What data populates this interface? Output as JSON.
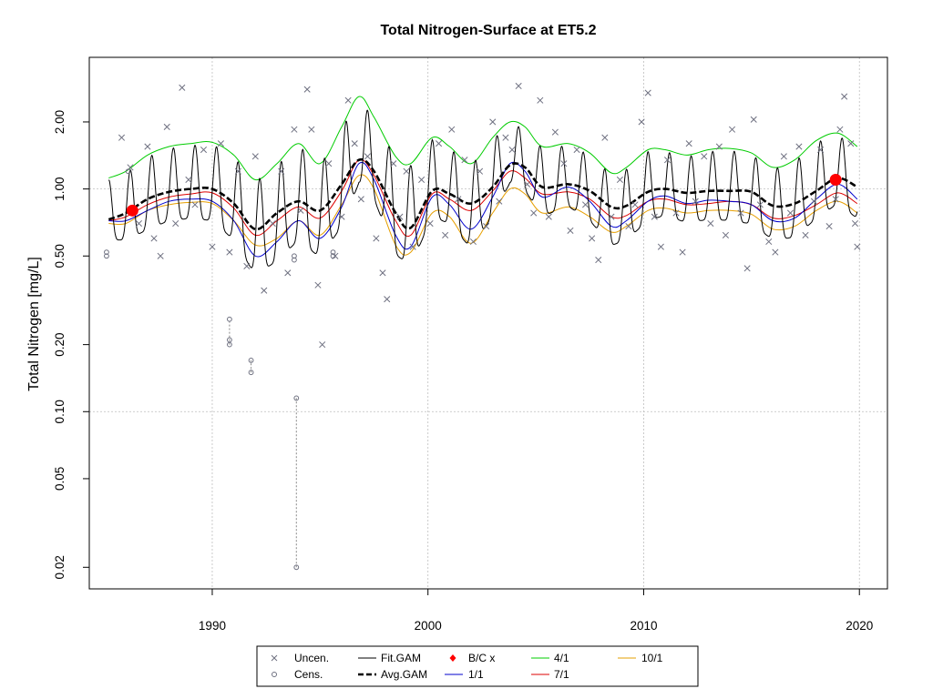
{
  "chart_data": {
    "type": "scatter",
    "title": "Total Nitrogen-Surface at ET5.2",
    "xlabel": "",
    "ylabel": "Total Nitrogen [mg/L]",
    "ylog": true,
    "xlim": [
      1984.3,
      2021.3
    ],
    "ylim": [
      0.016,
      3.9
    ],
    "x_ticks": [
      1990,
      2000,
      2010,
      2020
    ],
    "y_ticks": [
      0.02,
      0.05,
      0.1,
      0.2,
      0.5,
      1.0,
      2.0
    ],
    "y_tick_labels": [
      "0.02",
      "0.05",
      "0.10",
      "0.20",
      "0.50",
      "1.00",
      "2.00"
    ],
    "grid": true,
    "legend_position": "bottom",
    "legend": {
      "col1": [
        "Uncen.",
        "Cens."
      ],
      "col2": [
        "Fit.GAM",
        "Avg.GAM"
      ],
      "col3": [
        "B/C x",
        "1/1"
      ],
      "col4": [
        "4/1",
        "7/1"
      ],
      "col5": [
        "10/1"
      ]
    },
    "colors": {
      "uncensored": "#6e7080",
      "censored": "#6e7080",
      "fit_gam": "#000000",
      "avg_gam": "#000000",
      "bc": "#ff0000",
      "s1_1": "#0000cd",
      "s4_1": "#00cc00",
      "s7_1": "#dd0000",
      "s10_1": "#e69f00",
      "grid": "#bebebe"
    },
    "avg_gam": [
      [
        1985.2,
        0.73
      ],
      [
        1986.0,
        0.78
      ],
      [
        1987.0,
        0.9
      ],
      [
        1988.0,
        0.97
      ],
      [
        1989.0,
        1.0
      ],
      [
        1990.0,
        1.0
      ],
      [
        1991.0,
        0.86
      ],
      [
        1992.0,
        0.66
      ],
      [
        1993.0,
        0.78
      ],
      [
        1994.0,
        0.88
      ],
      [
        1995.0,
        0.8
      ],
      [
        1996.0,
        1.05
      ],
      [
        1996.8,
        1.35
      ],
      [
        1997.5,
        1.2
      ],
      [
        1998.5,
        0.78
      ],
      [
        1999.2,
        0.67
      ],
      [
        2000.2,
        0.98
      ],
      [
        2001.0,
        0.95
      ],
      [
        2002.0,
        0.86
      ],
      [
        2003.0,
        1.02
      ],
      [
        2003.8,
        1.28
      ],
      [
        2004.5,
        1.25
      ],
      [
        2005.3,
        1.02
      ],
      [
        2006.5,
        1.05
      ],
      [
        2007.5,
        0.98
      ],
      [
        2008.5,
        0.83
      ],
      [
        2009.2,
        0.84
      ],
      [
        2010.2,
        0.97
      ],
      [
        2011.0,
        1.0
      ],
      [
        2012.0,
        0.96
      ],
      [
        2013.0,
        0.98
      ],
      [
        2014.0,
        0.98
      ],
      [
        2015.0,
        0.97
      ],
      [
        2016.0,
        0.84
      ],
      [
        2017.0,
        0.86
      ],
      [
        2018.0,
        0.98
      ],
      [
        2019.0,
        1.12
      ],
      [
        2019.9,
        1.02
      ]
    ],
    "s1_1": [
      [
        1985.2,
        0.72
      ],
      [
        1986.0,
        0.72
      ],
      [
        1987.0,
        0.8
      ],
      [
        1988.0,
        0.88
      ],
      [
        1989.0,
        0.9
      ],
      [
        1990.0,
        0.88
      ],
      [
        1991.0,
        0.72
      ],
      [
        1992.0,
        0.5
      ],
      [
        1993.0,
        0.58
      ],
      [
        1994.0,
        0.72
      ],
      [
        1995.0,
        0.6
      ],
      [
        1996.0,
        0.83
      ],
      [
        1996.8,
        1.3
      ],
      [
        1997.5,
        1.1
      ],
      [
        1998.5,
        0.62
      ],
      [
        1999.2,
        0.55
      ],
      [
        2000.2,
        0.92
      ],
      [
        2001.0,
        0.85
      ],
      [
        2002.0,
        0.66
      ],
      [
        2003.0,
        0.92
      ],
      [
        2003.8,
        1.3
      ],
      [
        2004.5,
        1.2
      ],
      [
        2005.3,
        0.92
      ],
      [
        2006.5,
        1.02
      ],
      [
        2007.5,
        0.88
      ],
      [
        2008.5,
        0.68
      ],
      [
        2009.2,
        0.72
      ],
      [
        2010.2,
        0.88
      ],
      [
        2011.0,
        0.93
      ],
      [
        2012.0,
        0.86
      ],
      [
        2013.0,
        0.89
      ],
      [
        2014.0,
        0.88
      ],
      [
        2015.0,
        0.85
      ],
      [
        2016.0,
        0.72
      ],
      [
        2017.0,
        0.74
      ],
      [
        2018.0,
        0.9
      ],
      [
        2019.0,
        1.05
      ],
      [
        2019.9,
        0.9
      ]
    ],
    "s4_1": [
      [
        1985.2,
        1.12
      ],
      [
        1986.0,
        1.2
      ],
      [
        1987.0,
        1.42
      ],
      [
        1988.0,
        1.55
      ],
      [
        1989.0,
        1.6
      ],
      [
        1990.0,
        1.62
      ],
      [
        1991.0,
        1.42
      ],
      [
        1992.0,
        1.1
      ],
      [
        1993.0,
        1.3
      ],
      [
        1994.0,
        1.6
      ],
      [
        1995.0,
        1.3
      ],
      [
        1996.0,
        1.9
      ],
      [
        1996.8,
        2.6
      ],
      [
        1997.5,
        2.1
      ],
      [
        1998.5,
        1.4
      ],
      [
        1999.2,
        1.3
      ],
      [
        2000.2,
        1.7
      ],
      [
        2001.0,
        1.55
      ],
      [
        2002.0,
        1.3
      ],
      [
        2003.0,
        1.7
      ],
      [
        2003.8,
        2.0
      ],
      [
        2004.5,
        1.9
      ],
      [
        2005.3,
        1.55
      ],
      [
        2006.5,
        1.6
      ],
      [
        2007.5,
        1.45
      ],
      [
        2008.5,
        1.18
      ],
      [
        2009.2,
        1.25
      ],
      [
        2010.2,
        1.5
      ],
      [
        2011.0,
        1.5
      ],
      [
        2012.0,
        1.42
      ],
      [
        2013.0,
        1.5
      ],
      [
        2014.0,
        1.52
      ],
      [
        2015.0,
        1.45
      ],
      [
        2016.0,
        1.25
      ],
      [
        2017.0,
        1.35
      ],
      [
        2018.0,
        1.65
      ],
      [
        2019.0,
        1.78
      ],
      [
        2019.9,
        1.55
      ]
    ],
    "s7_1": [
      [
        1985.2,
        0.72
      ],
      [
        1986.0,
        0.75
      ],
      [
        1987.0,
        0.85
      ],
      [
        1988.0,
        0.92
      ],
      [
        1989.0,
        0.95
      ],
      [
        1990.0,
        0.96
      ],
      [
        1991.0,
        0.82
      ],
      [
        1992.0,
        0.62
      ],
      [
        1993.0,
        0.72
      ],
      [
        1994.0,
        0.83
      ],
      [
        1995.0,
        0.74
      ],
      [
        1996.0,
        0.98
      ],
      [
        1996.8,
        1.35
      ],
      [
        1997.5,
        1.15
      ],
      [
        1998.5,
        0.72
      ],
      [
        1999.2,
        0.62
      ],
      [
        2000.2,
        0.95
      ],
      [
        2001.0,
        0.9
      ],
      [
        2002.0,
        0.8
      ],
      [
        2003.0,
        0.98
      ],
      [
        2003.8,
        1.2
      ],
      [
        2004.5,
        1.12
      ],
      [
        2005.3,
        0.95
      ],
      [
        2006.5,
        0.97
      ],
      [
        2007.5,
        0.9
      ],
      [
        2008.5,
        0.75
      ],
      [
        2009.2,
        0.76
      ],
      [
        2010.2,
        0.88
      ],
      [
        2011.0,
        0.9
      ],
      [
        2012.0,
        0.85
      ],
      [
        2013.0,
        0.86
      ],
      [
        2014.0,
        0.88
      ],
      [
        2015.0,
        0.85
      ],
      [
        2016.0,
        0.74
      ],
      [
        2017.0,
        0.76
      ],
      [
        2018.0,
        0.85
      ],
      [
        2019.0,
        0.96
      ],
      [
        2019.9,
        0.86
      ]
    ],
    "s10_1": [
      [
        1985.2,
        0.7
      ],
      [
        1986.0,
        0.7
      ],
      [
        1987.0,
        0.8
      ],
      [
        1988.0,
        0.85
      ],
      [
        1989.0,
        0.87
      ],
      [
        1990.0,
        0.86
      ],
      [
        1991.0,
        0.72
      ],
      [
        1992.0,
        0.56
      ],
      [
        1993.0,
        0.6
      ],
      [
        1994.0,
        0.72
      ],
      [
        1995.0,
        0.62
      ],
      [
        1996.0,
        0.85
      ],
      [
        1996.8,
        1.15
      ],
      [
        1997.5,
        1.0
      ],
      [
        1998.5,
        0.56
      ],
      [
        1999.2,
        0.52
      ],
      [
        2000.2,
        0.78
      ],
      [
        2001.0,
        0.75
      ],
      [
        2002.0,
        0.57
      ],
      [
        2003.0,
        0.78
      ],
      [
        2003.8,
        1.0
      ],
      [
        2004.5,
        0.95
      ],
      [
        2005.3,
        0.78
      ],
      [
        2006.5,
        0.83
      ],
      [
        2007.5,
        0.75
      ],
      [
        2008.5,
        0.64
      ],
      [
        2009.2,
        0.68
      ],
      [
        2010.2,
        0.8
      ],
      [
        2011.0,
        0.82
      ],
      [
        2012.0,
        0.78
      ],
      [
        2013.0,
        0.8
      ],
      [
        2014.0,
        0.8
      ],
      [
        2015.0,
        0.77
      ],
      [
        2016.0,
        0.66
      ],
      [
        2017.0,
        0.68
      ],
      [
        2018.0,
        0.8
      ],
      [
        2019.0,
        0.88
      ],
      [
        2019.9,
        0.78
      ]
    ],
    "bc_points": [
      [
        1986.3,
        0.8
      ],
      [
        2018.9,
        1.1
      ]
    ],
    "uncensored_points": [
      [
        1985.8,
        1.7
      ],
      [
        1986.2,
        1.25
      ],
      [
        1986.6,
        0.7
      ],
      [
        1987.0,
        1.55
      ],
      [
        1987.3,
        0.6
      ],
      [
        1987.6,
        0.5
      ],
      [
        1987.9,
        1.9
      ],
      [
        1988.3,
        0.7
      ],
      [
        1988.6,
        2.85
      ],
      [
        1988.9,
        1.1
      ],
      [
        1989.2,
        0.85
      ],
      [
        1989.6,
        1.5
      ],
      [
        1990.0,
        0.55
      ],
      [
        1990.4,
        1.6
      ],
      [
        1990.8,
        0.52
      ],
      [
        1991.2,
        1.2
      ],
      [
        1991.6,
        0.45
      ],
      [
        1992.0,
        1.4
      ],
      [
        1992.4,
        0.35
      ],
      [
        1992.8,
        0.7
      ],
      [
        1993.2,
        1.2
      ],
      [
        1993.5,
        0.42
      ],
      [
        1993.8,
        1.85
      ],
      [
        1994.1,
        0.8
      ],
      [
        1994.4,
        2.8
      ],
      [
        1994.6,
        1.85
      ],
      [
        1994.9,
        0.37
      ],
      [
        1995.1,
        0.2
      ],
      [
        1995.4,
        1.3
      ],
      [
        1995.7,
        0.5
      ],
      [
        1996.0,
        0.75
      ],
      [
        1996.3,
        2.5
      ],
      [
        1996.6,
        1.6
      ],
      [
        1996.9,
        0.9
      ],
      [
        1997.2,
        1.4
      ],
      [
        1997.6,
        0.6
      ],
      [
        1997.9,
        0.42
      ],
      [
        1998.1,
        0.32
      ],
      [
        1998.4,
        1.3
      ],
      [
        1998.7,
        0.75
      ],
      [
        1999.0,
        1.2
      ],
      [
        1999.3,
        0.55
      ],
      [
        1999.7,
        1.1
      ],
      [
        2000.1,
        0.7
      ],
      [
        2000.5,
        1.6
      ],
      [
        2000.8,
        0.62
      ],
      [
        2001.1,
        1.85
      ],
      [
        2001.4,
        0.9
      ],
      [
        2001.7,
        1.35
      ],
      [
        2002.1,
        0.58
      ],
      [
        2002.4,
        1.2
      ],
      [
        2002.7,
        0.68
      ],
      [
        2003.0,
        2.0
      ],
      [
        2003.3,
        0.88
      ],
      [
        2003.6,
        1.7
      ],
      [
        2003.9,
        1.5
      ],
      [
        2004.2,
        2.9
      ],
      [
        2004.6,
        1.05
      ],
      [
        2004.9,
        0.78
      ],
      [
        2005.2,
        2.5
      ],
      [
        2005.6,
        0.75
      ],
      [
        2005.9,
        1.8
      ],
      [
        2006.3,
        1.3
      ],
      [
        2006.6,
        0.65
      ],
      [
        2006.9,
        1.5
      ],
      [
        2007.3,
        0.85
      ],
      [
        2007.6,
        0.6
      ],
      [
        2007.9,
        0.48
      ],
      [
        2008.2,
        1.7
      ],
      [
        2008.5,
        0.75
      ],
      [
        2008.9,
        1.1
      ],
      [
        2009.3,
        0.68
      ],
      [
        2009.6,
        0.85
      ],
      [
        2009.9,
        2.0
      ],
      [
        2010.2,
        2.7
      ],
      [
        2010.5,
        0.75
      ],
      [
        2010.8,
        0.55
      ],
      [
        2011.1,
        1.35
      ],
      [
        2011.5,
        0.78
      ],
      [
        2011.8,
        0.52
      ],
      [
        2012.1,
        1.6
      ],
      [
        2012.4,
        0.88
      ],
      [
        2012.8,
        1.4
      ],
      [
        2013.1,
        0.7
      ],
      [
        2013.5,
        1.55
      ],
      [
        2013.8,
        0.62
      ],
      [
        2014.1,
        1.85
      ],
      [
        2014.5,
        0.78
      ],
      [
        2014.8,
        0.44
      ],
      [
        2015.1,
        2.05
      ],
      [
        2015.4,
        0.85
      ],
      [
        2015.8,
        0.58
      ],
      [
        2016.1,
        0.52
      ],
      [
        2016.5,
        1.4
      ],
      [
        2016.8,
        0.78
      ],
      [
        2017.2,
        1.55
      ],
      [
        2017.5,
        0.62
      ],
      [
        2017.9,
        0.88
      ],
      [
        2018.2,
        1.5
      ],
      [
        2018.6,
        0.68
      ],
      [
        2018.9,
        0.9
      ],
      [
        2019.1,
        1.85
      ],
      [
        2019.3,
        2.6
      ],
      [
        2019.6,
        1.6
      ],
      [
        2019.8,
        0.7
      ],
      [
        2019.9,
        0.55
      ]
    ],
    "censored_points": [
      [
        1985.1,
        0.52
      ],
      [
        1985.1,
        0.5
      ],
      [
        1986.1,
        1.2
      ],
      [
        1990.8,
        0.26
      ],
      [
        1990.8,
        0.21
      ],
      [
        1990.8,
        0.2
      ],
      [
        1991.8,
        0.17
      ],
      [
        1991.8,
        0.15
      ],
      [
        1993.9,
        0.115
      ],
      [
        1993.9,
        0.02
      ],
      [
        1993.8,
        0.5
      ],
      [
        1993.8,
        0.48
      ],
      [
        1995.6,
        0.5
      ],
      [
        1995.6,
        0.52
      ]
    ],
    "censored_ranges": [
      [
        1990.8,
        0.2,
        0.26
      ],
      [
        1991.8,
        0.15,
        0.17
      ],
      [
        1993.9,
        0.02,
        0.115
      ]
    ]
  }
}
